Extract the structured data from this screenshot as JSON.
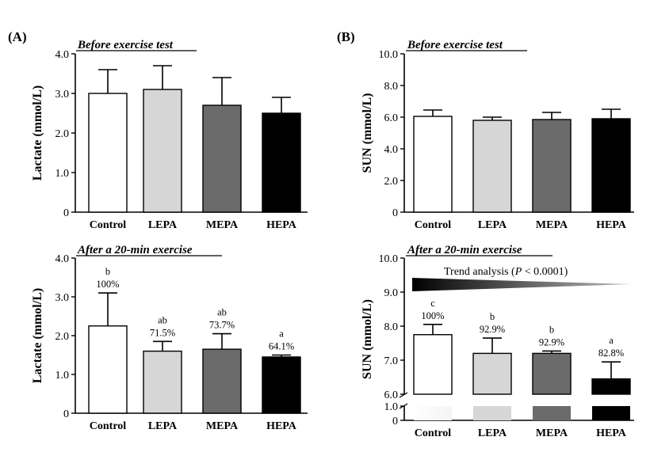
{
  "panel_labels": {
    "A": "(A)",
    "B": "(B)"
  },
  "trend_label": "Trend analysis (P < 0.0001)",
  "trend_prefix": "Trend analysis (",
  "trend_p": "P",
  "trend_suffix": " < 0.0001)",
  "chart_data": [
    {
      "id": "A-top",
      "type": "bar",
      "title": "Before exercise test",
      "ylabel": "Lactate (mmol/L)",
      "categories": [
        "Control",
        "LEPA",
        "MEPA",
        "HEPA"
      ],
      "values": [
        3.0,
        3.1,
        2.7,
        2.5
      ],
      "errors": [
        0.6,
        0.6,
        0.7,
        0.4
      ],
      "yticks": [
        "0",
        "1.0",
        "2.0",
        "3.0",
        "4.0"
      ],
      "ytick_values": [
        0,
        1,
        2,
        3,
        4
      ],
      "ylim": [
        0,
        4
      ],
      "fills": [
        "#ffffff",
        "#d6d6d6",
        "#6b6b6b",
        "#000000"
      ],
      "letters": [],
      "percents": []
    },
    {
      "id": "B-top",
      "type": "bar",
      "title": "Before exercise test",
      "ylabel": "SUN (mmol/L)",
      "categories": [
        "Control",
        "LEPA",
        "MEPA",
        "HEPA"
      ],
      "values": [
        6.05,
        5.8,
        5.85,
        5.9
      ],
      "errors": [
        0.4,
        0.2,
        0.45,
        0.6
      ],
      "yticks": [
        "0",
        "2.0",
        "4.0",
        "6.0",
        "8.0",
        "10.0"
      ],
      "ytick_values": [
        0,
        2,
        4,
        6,
        8,
        10
      ],
      "ylim": [
        0,
        10
      ],
      "fills": [
        "#ffffff",
        "#d6d6d6",
        "#6b6b6b",
        "#000000"
      ],
      "letters": [],
      "percents": []
    },
    {
      "id": "A-bottom",
      "type": "bar",
      "title": "After a 20-min exercise",
      "ylabel": "Lactate (mmol/L)",
      "categories": [
        "Control",
        "LEPA",
        "MEPA",
        "HEPA"
      ],
      "values": [
        2.25,
        1.6,
        1.65,
        1.45
      ],
      "errors": [
        0.85,
        0.25,
        0.4,
        0.05
      ],
      "yticks": [
        "0",
        "1.0",
        "2.0",
        "3.0",
        "4.0"
      ],
      "ytick_values": [
        0,
        1,
        2,
        3,
        4
      ],
      "ylim": [
        0,
        4
      ],
      "fills": [
        "#ffffff",
        "#d6d6d6",
        "#6b6b6b",
        "#000000"
      ],
      "letters": [
        "b",
        "ab",
        "ab",
        "a"
      ],
      "percents": [
        "100%",
        "71.5%",
        "73.7%",
        "64.1%"
      ]
    },
    {
      "id": "B-bottom",
      "type": "bar",
      "title": "After a 20-min exercise",
      "ylabel": "SUN (mmol/L)",
      "categories": [
        "Control",
        "LEPA",
        "MEPA",
        "HEPA"
      ],
      "values": [
        7.75,
        7.2,
        7.2,
        6.45
      ],
      "errors": [
        0.3,
        0.45,
        0.07,
        0.5
      ],
      "yticks": [
        "6.0",
        "7.0",
        "8.0",
        "9.0",
        "10.0"
      ],
      "ytick_values": [
        6,
        7,
        8,
        9,
        10
      ],
      "lower_yticks": [
        "0",
        "1.0"
      ],
      "lower_ytick_values": [
        0,
        1
      ],
      "ylim": [
        6,
        10
      ],
      "broken_axis": true,
      "fills": [
        "#ffffff",
        "#d6d6d6",
        "#6b6b6b",
        "#000000"
      ],
      "letters": [
        "c",
        "b",
        "b",
        "a"
      ],
      "percents": [
        "100%",
        "92.9%",
        "92.9%",
        "82.8%"
      ]
    }
  ]
}
